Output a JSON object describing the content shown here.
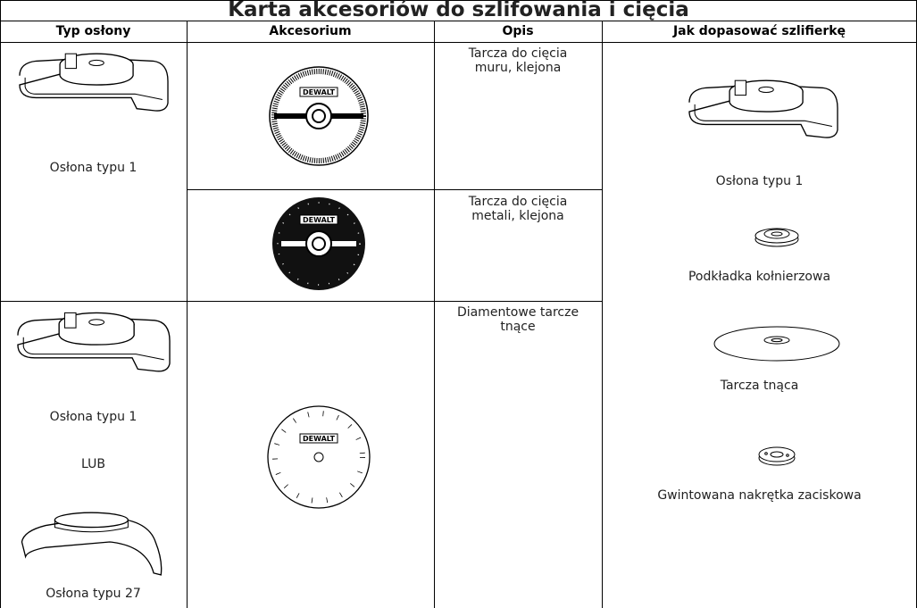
{
  "table": {
    "title": "Karta akcesoriów do szlifowania i cięcia",
    "headers": [
      "Typ osłony",
      "Akcesorium",
      "Opis",
      "Jak dopasować szlifierkę"
    ],
    "brand": "DEWALT",
    "guard_cells": [
      {
        "labels": [
          "Osłona typu 1"
        ]
      },
      {
        "labels": [
          "Osłona typu 1",
          "LUB",
          "Osłona typu 27"
        ]
      }
    ],
    "descriptions": [
      "Tarcza do cięcia muru, klejona",
      "Tarcza do cięcia metali, klejona",
      "Diamentowe tarcze tnące"
    ],
    "fitting": [
      "Osłona typu 1",
      "Podkładka kołnierzowa",
      "Tarcza tnąca",
      "Gwintowana nakrętka zaciskowa"
    ]
  }
}
